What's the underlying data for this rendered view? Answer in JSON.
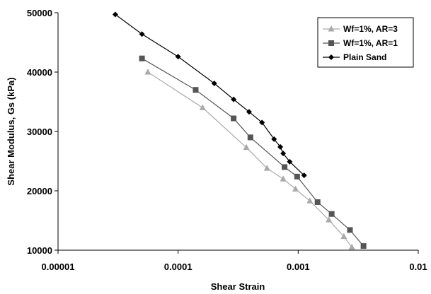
{
  "chart_data": {
    "type": "line",
    "title": "",
    "xlabel": "Shear Strain",
    "ylabel": "Shear Modulus, Gs (kPa)",
    "xscale": "log",
    "xlim": [
      1e-05,
      0.01
    ],
    "ylim": [
      10000,
      50000
    ],
    "x_ticks": [
      "0.00001",
      "0.0001",
      "0.001",
      "0.01"
    ],
    "y_ticks": [
      "10000",
      "20000",
      "30000",
      "40000",
      "50000"
    ],
    "grid": false,
    "legend_position": "top-right",
    "series": [
      {
        "name": "Wf=1%, AR=3",
        "marker": "triangle",
        "color": "#aaaaaa",
        "points": [
          [
            5.6e-05,
            40000
          ],
          [
            0.00016,
            34000
          ],
          [
            0.00037,
            27300
          ],
          [
            0.00055,
            23800
          ],
          [
            0.00075,
            22000
          ],
          [
            0.00095,
            20300
          ],
          [
            0.00125,
            18300
          ],
          [
            0.0018,
            15100
          ],
          [
            0.0024,
            12300
          ],
          [
            0.0028,
            10500
          ]
        ]
      },
      {
        "name": "Wf=1%, AR=1",
        "marker": "square",
        "color": "#555555",
        "points": [
          [
            5e-05,
            42300
          ],
          [
            0.00014,
            37000
          ],
          [
            0.00029,
            32200
          ],
          [
            0.0004,
            29000
          ],
          [
            0.00077,
            24000
          ],
          [
            0.00098,
            22400
          ],
          [
            0.00145,
            18100
          ],
          [
            0.0019,
            16100
          ],
          [
            0.0027,
            13400
          ],
          [
            0.0035,
            10700
          ]
        ]
      },
      {
        "name": "Plain Sand",
        "marker": "diamond",
        "color": "#000000",
        "points": [
          [
            3e-05,
            49700
          ],
          [
            5e-05,
            46400
          ],
          [
            0.0001,
            42600
          ],
          [
            0.0002,
            38100
          ],
          [
            0.00029,
            35400
          ],
          [
            0.00039,
            33300
          ],
          [
            0.0005,
            31500
          ],
          [
            0.00063,
            28700
          ],
          [
            0.00071,
            27400
          ],
          [
            0.00075,
            26300
          ],
          [
            0.00085,
            24900
          ],
          [
            0.00112,
            22600
          ]
        ]
      }
    ]
  }
}
